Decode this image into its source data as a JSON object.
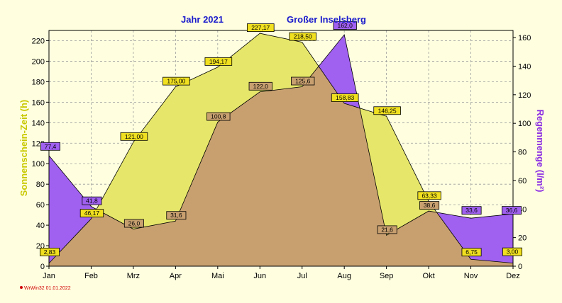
{
  "title_year": "Jahr  2021",
  "title_location": "Großer Inselsberg",
  "footer": "WrWin32  01.01.2022",
  "colors": {
    "sun_fill": "#e6e66a",
    "rain_fill": "#a060f0",
    "overlap_fill": "#c8a070",
    "sun_label_bg": "#f0e020",
    "rain_label_bg": "#a060f0",
    "overlap_label_bg": "#c8a070",
    "title": "#1a1acc",
    "left_axis_label": "#c8c800",
    "right_axis_label": "#8a2be2"
  },
  "chart_data": {
    "type": "area",
    "categories": [
      "Jan",
      "Feb",
      "Mrz",
      "Apr",
      "Mai",
      "Jun",
      "Jul",
      "Aug",
      "Sep",
      "Okt",
      "Nov",
      "Dez"
    ],
    "ylabel_left": "Sonnenschein-Zeit  (h)",
    "ylabel_right": "Regenmenge  (l/m²)",
    "ylim_left": [
      0,
      230
    ],
    "ylim_right": [
      0,
      165
    ],
    "yticks_left": [
      0,
      20,
      40,
      60,
      80,
      100,
      120,
      140,
      160,
      180,
      200,
      220
    ],
    "yticks_right": [
      0,
      20,
      40,
      60,
      80,
      100,
      120,
      140,
      160
    ],
    "grid": true,
    "series": [
      {
        "axis": "left",
        "values": [
          2.83,
          46.17,
          121.0,
          175.0,
          194.17,
          227.17,
          218.5,
          158.83,
          146.25,
          63.33,
          6.75,
          3.0
        ],
        "labels": [
          "2,83",
          "46,17",
          "121,00",
          "175,00",
          "194,17",
          "227,17",
          "218,50",
          "158,83",
          "146,25",
          "63,33",
          "6,75",
          "3,00"
        ]
      },
      {
        "axis": "right",
        "values": [
          77.4,
          41.8,
          26.0,
          31.6,
          100.8,
          122.0,
          125.6,
          162.0,
          21.6,
          38.6,
          33.6,
          36.6
        ],
        "labels": [
          "77,4",
          "41,8",
          "26,0",
          "31,6",
          "100,8",
          "122,0",
          "125,6",
          "162,0",
          "21,6",
          "38,6",
          "33,6",
          "36,6"
        ]
      }
    ]
  }
}
